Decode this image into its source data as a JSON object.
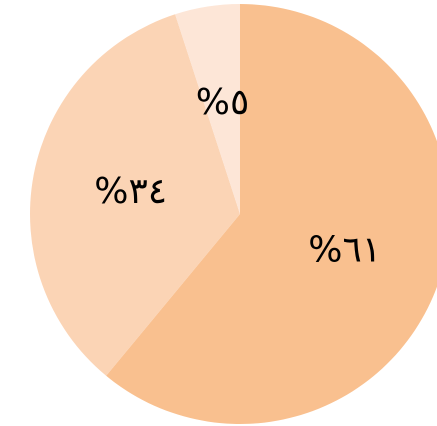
{
  "chart_data": {
    "type": "pie",
    "categories": [
      null,
      null,
      null
    ],
    "values": [
      61,
      34,
      5
    ],
    "value_labels": [
      "%٦١",
      "%٣٤",
      "%٥"
    ],
    "colors": [
      "#f9c08f",
      "#fbd4b5",
      "#fde6d7"
    ]
  }
}
